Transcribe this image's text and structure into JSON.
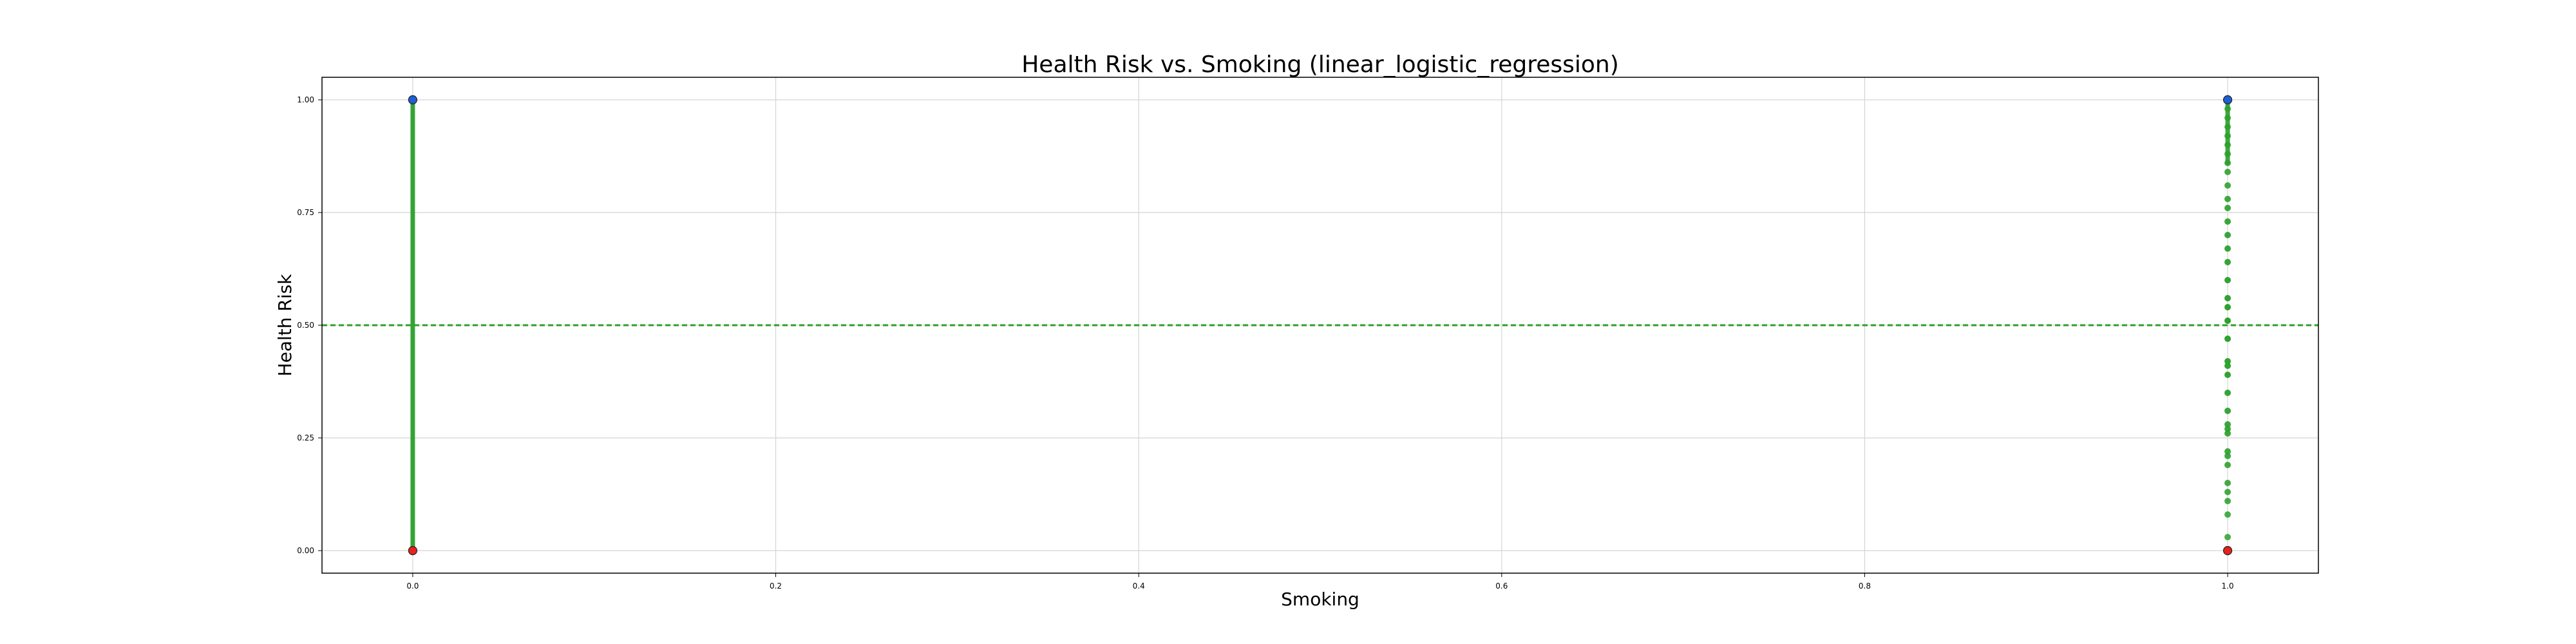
{
  "chart_data": {
    "type": "scatter",
    "title": "Health Risk vs. Smoking (linear_logistic_regression)",
    "xlabel": "Smoking",
    "ylabel": "Health Risk",
    "xlim": [
      -0.05,
      1.05
    ],
    "ylim": [
      -0.05,
      1.05
    ],
    "xticks": [
      "0.0",
      "0.2",
      "0.4",
      "0.6",
      "0.8",
      "1.0"
    ],
    "yticks": [
      "0.00",
      "0.25",
      "0.50",
      "0.75",
      "1.00"
    ],
    "grid": true,
    "threshold": 0.5,
    "colors": {
      "actual_high": "#1f5fd6",
      "actual_low": "#e8211c",
      "predicted": "#2ca02c",
      "threshold_line": "#2ca02c",
      "grid": "#d4d4d4",
      "axes": "#000000"
    },
    "actual_points": [
      {
        "x": 0,
        "y": 1
      },
      {
        "x": 0,
        "y": 0
      },
      {
        "x": 1,
        "y": 1
      },
      {
        "x": 1,
        "y": 0
      }
    ],
    "predicted_points": [
      {
        "x": 1,
        "y": 0.98
      },
      {
        "x": 1,
        "y": 0.96
      },
      {
        "x": 1,
        "y": 0.94
      },
      {
        "x": 1,
        "y": 0.92
      },
      {
        "x": 1,
        "y": 0.9
      },
      {
        "x": 1,
        "y": 0.88
      },
      {
        "x": 1,
        "y": 0.86
      },
      {
        "x": 1,
        "y": 0.84
      },
      {
        "x": 1,
        "y": 0.81
      },
      {
        "x": 1,
        "y": 0.78
      },
      {
        "x": 1,
        "y": 0.76
      },
      {
        "x": 1,
        "y": 0.73
      },
      {
        "x": 1,
        "y": 0.7
      },
      {
        "x": 1,
        "y": 0.67
      },
      {
        "x": 1,
        "y": 0.64
      },
      {
        "x": 1,
        "y": 0.6
      },
      {
        "x": 1,
        "y": 0.56
      },
      {
        "x": 1,
        "y": 0.54
      },
      {
        "x": 1,
        "y": 0.51
      },
      {
        "x": 1,
        "y": 0.47
      },
      {
        "x": 1,
        "y": 0.42
      },
      {
        "x": 1,
        "y": 0.41
      },
      {
        "x": 1,
        "y": 0.39
      },
      {
        "x": 1,
        "y": 0.35
      },
      {
        "x": 1,
        "y": 0.31
      },
      {
        "x": 1,
        "y": 0.28
      },
      {
        "x": 1,
        "y": 0.27
      },
      {
        "x": 1,
        "y": 0.26
      },
      {
        "x": 1,
        "y": 0.22
      },
      {
        "x": 1,
        "y": 0.21
      },
      {
        "x": 1,
        "y": 0.19
      },
      {
        "x": 1,
        "y": 0.15
      },
      {
        "x": 1,
        "y": 0.13
      },
      {
        "x": 1,
        "y": 0.11
      },
      {
        "x": 1,
        "y": 0.08
      },
      {
        "x": 1,
        "y": 0.03
      }
    ]
  }
}
